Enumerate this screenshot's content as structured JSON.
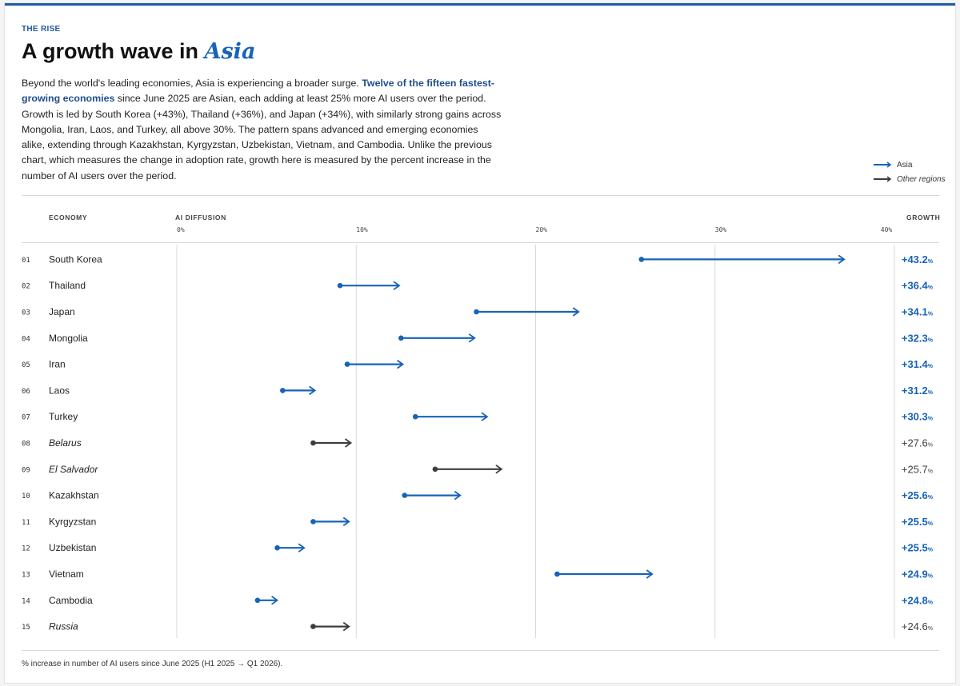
{
  "header": {
    "eyebrow": "THE RISE",
    "title_prefix": "A growth wave in ",
    "title_highlight": "Asia"
  },
  "intro": {
    "part1": "Beyond the world's leading economies, Asia is experiencing a broader surge. ",
    "highlight": "Twelve of the fifteen fastest-growing economies",
    "part2": " since June 2025 are Asian, each adding at least 25% more AI users over the period. Growth is led by South Korea (+43%), Thailand (+36%), and Japan (+34%), with similarly strong gains across Mongolia, Iran, Laos, and Turkey, all above 30%. The pattern spans advanced and emerging economies alike, extending through Kazakhstan, Kyrgyzstan, Uzbekistan, Vietnam, and Cambodia. Unlike the previous chart, which measures the change in adoption rate, growth here is measured by the percent increase in the number of AI users over the period."
  },
  "legend": {
    "asia": "Asia",
    "other": "Other regions"
  },
  "columns": {
    "economy": "ECONOMY",
    "diffusion": "AI DIFFUSION",
    "growth": "GROWTH"
  },
  "footnote": "% increase in number of AI users since June 2025 (H1 2025 → Q1 2026).",
  "colors": {
    "asia": "#1763b8",
    "other": "#3d3d3d",
    "grid": "#d9d9d9"
  },
  "chart_data": {
    "type": "arrow-dot",
    "x_axis": {
      "min": 0,
      "max": 40,
      "ticks": [
        0,
        10,
        20,
        30,
        40
      ],
      "tick_labels": [
        "0%",
        "10%",
        "20%",
        "30%",
        "40%"
      ]
    },
    "growth_unit": "%",
    "rows": [
      {
        "rank": "01",
        "economy": "South Korea",
        "region": "asia",
        "start": 25.9,
        "end": 37.2,
        "growth": "+43.2"
      },
      {
        "rank": "02",
        "economy": "Thailand",
        "region": "asia",
        "start": 9.1,
        "end": 12.4,
        "growth": "+36.4"
      },
      {
        "rank": "03",
        "economy": "Japan",
        "region": "asia",
        "start": 16.7,
        "end": 22.4,
        "growth": "+34.1"
      },
      {
        "rank": "04",
        "economy": "Mongolia",
        "region": "asia",
        "start": 12.5,
        "end": 16.6,
        "growth": "+32.3"
      },
      {
        "rank": "05",
        "economy": "Iran",
        "region": "asia",
        "start": 9.5,
        "end": 12.6,
        "growth": "+31.4"
      },
      {
        "rank": "06",
        "economy": "Laos",
        "region": "asia",
        "start": 5.9,
        "end": 7.7,
        "growth": "+31.2"
      },
      {
        "rank": "07",
        "economy": "Turkey",
        "region": "asia",
        "start": 13.3,
        "end": 17.3,
        "growth": "+30.3"
      },
      {
        "rank": "08",
        "economy": "Belarus",
        "region": "other",
        "start": 7.6,
        "end": 9.7,
        "growth": "+27.6"
      },
      {
        "rank": "09",
        "economy": "El Salvador",
        "region": "other",
        "start": 14.4,
        "end": 18.1,
        "growth": "+25.7"
      },
      {
        "rank": "10",
        "economy": "Kazakhstan",
        "region": "asia",
        "start": 12.7,
        "end": 15.8,
        "growth": "+25.6"
      },
      {
        "rank": "11",
        "economy": "Kyrgyzstan",
        "region": "asia",
        "start": 7.6,
        "end": 9.6,
        "growth": "+25.5"
      },
      {
        "rank": "12",
        "economy": "Uzbekistan",
        "region": "asia",
        "start": 5.6,
        "end": 7.1,
        "growth": "+25.5"
      },
      {
        "rank": "13",
        "economy": "Vietnam",
        "region": "asia",
        "start": 21.2,
        "end": 26.5,
        "growth": "+24.9"
      },
      {
        "rank": "14",
        "economy": "Cambodia",
        "region": "asia",
        "start": 4.5,
        "end": 5.6,
        "growth": "+24.8"
      },
      {
        "rank": "15",
        "economy": "Russia",
        "region": "other",
        "start": 7.6,
        "end": 9.6,
        "growth": "+24.6"
      }
    ]
  }
}
